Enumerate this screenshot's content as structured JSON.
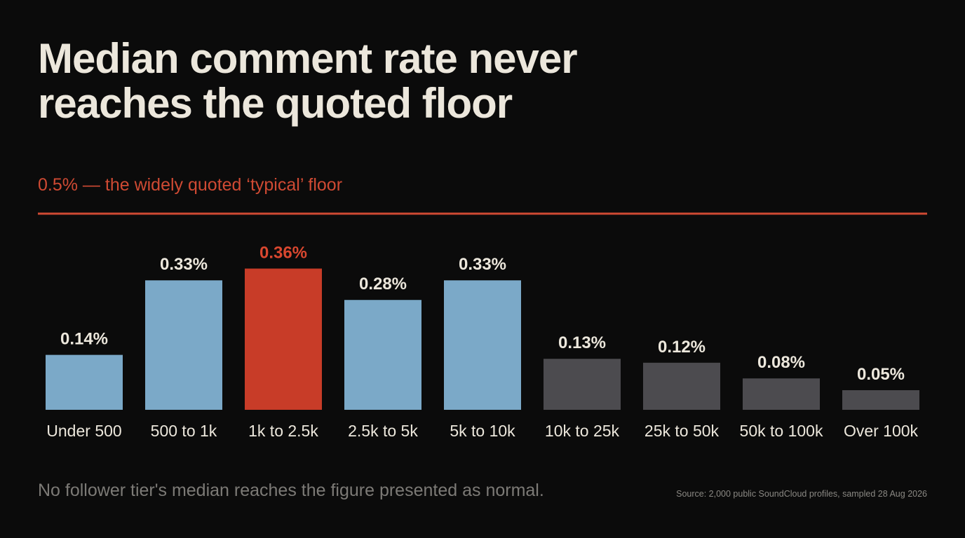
{
  "chart_data": {
    "type": "bar",
    "title": "Median comment rate never\nreaches the quoted floor",
    "categories": [
      "Under 500",
      "500 to 1k",
      "1k to 2.5k",
      "2.5k to 5k",
      "5k to 10k",
      "10k to 25k",
      "25k to 50k",
      "50k to 100k",
      "Over 100k"
    ],
    "values": [
      0.14,
      0.33,
      0.36,
      0.28,
      0.33,
      0.13,
      0.12,
      0.08,
      0.05
    ],
    "value_labels": [
      "0.14%",
      "0.33%",
      "0.36%",
      "0.28%",
      "0.33%",
      "0.13%",
      "0.12%",
      "0.08%",
      "0.05%"
    ],
    "bar_colors": [
      "#7ba9c8",
      "#7ba9c8",
      "#c83c28",
      "#7ba9c8",
      "#7ba9c8",
      "#4c4b4f",
      "#4c4b4f",
      "#4c4b4f",
      "#4c4b4f"
    ],
    "label_colors": [
      "#ece7dc",
      "#ece7dc",
      "#d9472f",
      "#ece7dc",
      "#ece7dc",
      "#ece7dc",
      "#ece7dc",
      "#ece7dc",
      "#ece7dc"
    ],
    "reference_line": {
      "value": 0.5,
      "label": "0.5% — the widely quoted ‘typical’ floor",
      "color": "#cf4a33"
    },
    "ylim": [
      0,
      0.5
    ],
    "xlabel": "",
    "ylabel": "",
    "grid": false
  },
  "footer": {
    "note": "No follower tier's median reaches the figure presented as normal.",
    "source": "Source: 2,000 public SoundCloud profiles, sampled 28 Aug 2026"
  }
}
